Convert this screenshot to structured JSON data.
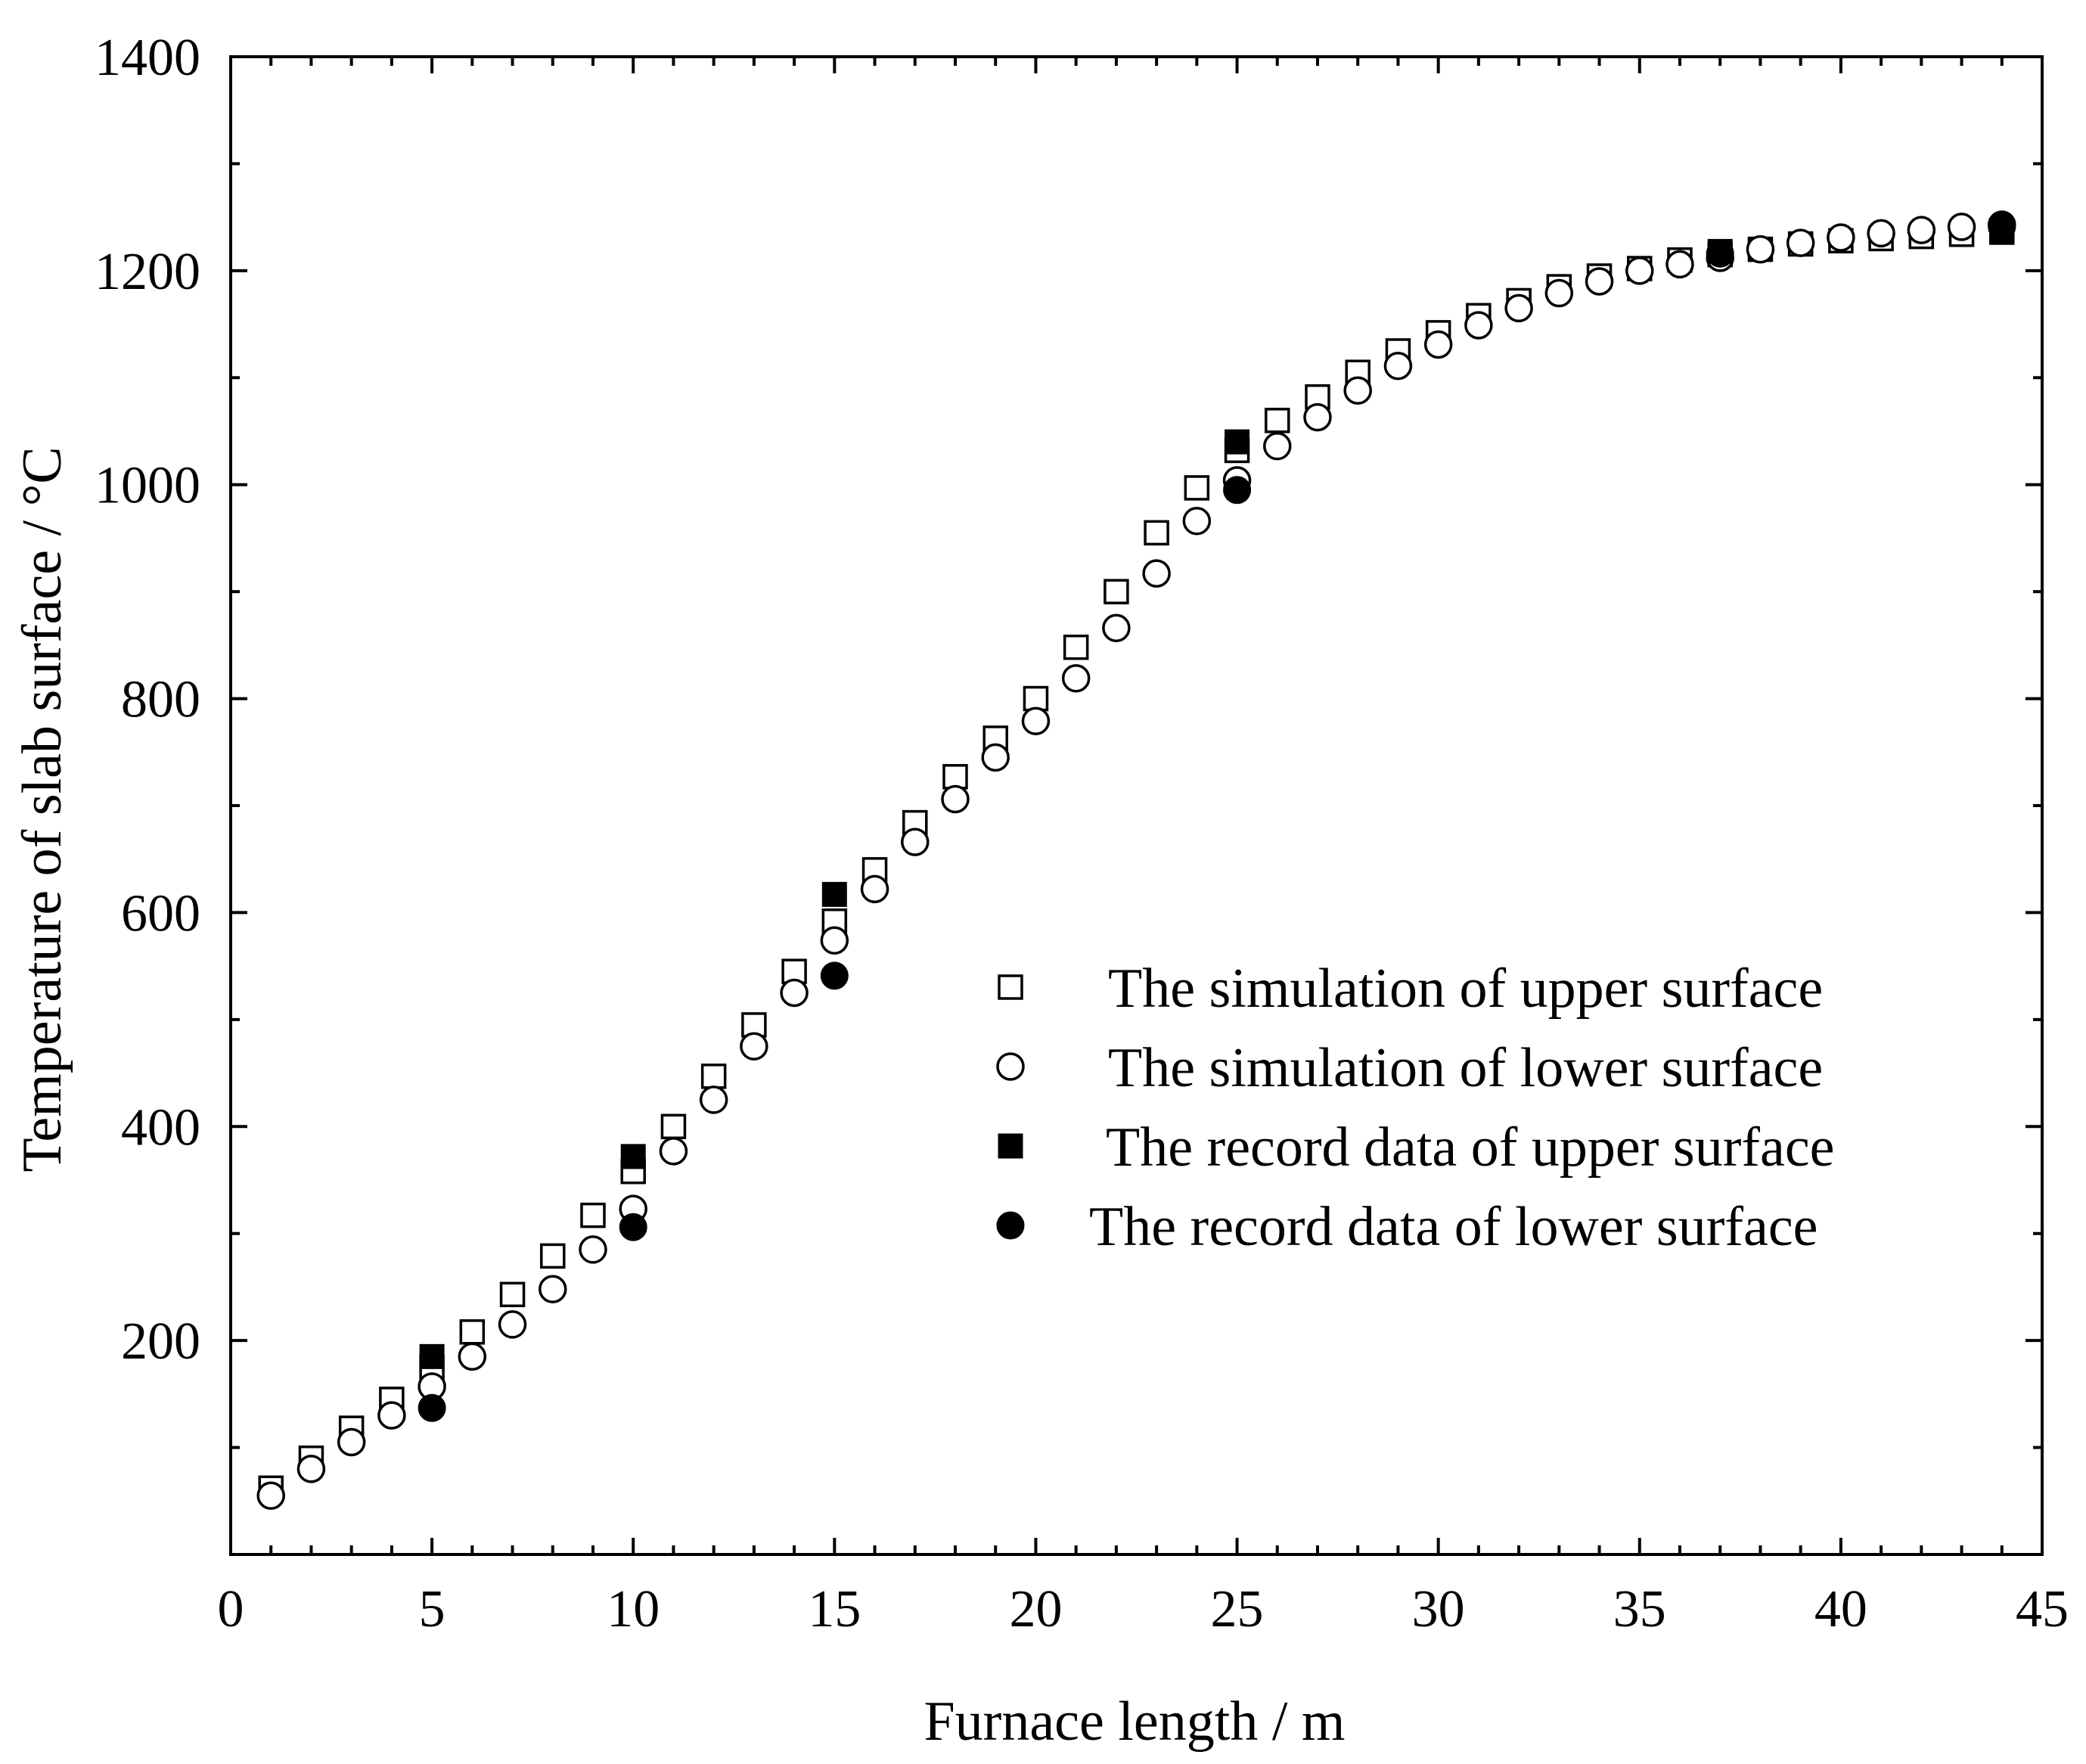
{
  "chart_data": {
    "type": "scatter",
    "title": "",
    "xlabel": "Furnace length / m",
    "ylabel": "Temperature of  slab surface / °C",
    "xlim": [
      0,
      45
    ],
    "ylim": [
      0,
      1400
    ],
    "xticks": [
      0,
      5,
      10,
      15,
      20,
      25,
      30,
      35,
      40,
      45
    ],
    "yticks": [
      200,
      400,
      600,
      800,
      1000,
      1200,
      1400
    ],
    "grid": false,
    "legend_position": "center-right",
    "series": [
      {
        "name": "The simulation of upper surface",
        "marker": "open-square",
        "color": "#000000",
        "x": [
          1,
          2,
          3,
          4,
          5,
          6,
          7,
          8,
          9,
          10,
          11,
          12,
          13,
          14,
          15,
          16,
          17,
          18,
          19,
          20,
          21,
          22,
          23,
          24,
          25,
          26,
          27,
          28,
          29,
          30,
          31,
          32,
          33,
          34,
          35,
          36,
          37,
          38,
          39,
          40,
          41,
          42,
          43,
          44
        ],
        "y": [
          62,
          90,
          118,
          145,
          175,
          208,
          243,
          279,
          317,
          358,
          400,
          447,
          495,
          545,
          592,
          640,
          684,
          727,
          763,
          800,
          848,
          900,
          955,
          997,
          1032,
          1060,
          1082,
          1105,
          1125,
          1142,
          1158,
          1172,
          1185,
          1195,
          1202,
          1210,
          1215,
          1220,
          1225,
          1228,
          1230,
          1232,
          1234,
          1236
        ]
      },
      {
        "name": "The simulation of lower surface",
        "marker": "open-circle",
        "color": "#000000",
        "x": [
          1,
          2,
          3,
          4,
          5,
          6,
          7,
          8,
          9,
          10,
          11,
          12,
          13,
          14,
          15,
          16,
          17,
          18,
          19,
          20,
          21,
          22,
          23,
          24,
          25,
          26,
          27,
          28,
          29,
          30,
          31,
          32,
          33,
          34,
          35,
          36,
          37,
          38,
          39,
          40,
          41,
          42,
          43,
          44
        ],
        "y": [
          55,
          80,
          105,
          130,
          157,
          185,
          215,
          248,
          285,
          323,
          377,
          425,
          475,
          525,
          574,
          622,
          666,
          706,
          745,
          779,
          819,
          866,
          917,
          966,
          1004,
          1036,
          1063,
          1088,
          1111,
          1131,
          1149,
          1165,
          1179,
          1190,
          1200,
          1206,
          1212,
          1220,
          1226,
          1231,
          1235,
          1238,
          1241,
          1243
        ]
      },
      {
        "name": "The record data of upper surface",
        "marker": "filled-square",
        "color": "#000000",
        "x": [
          5,
          10,
          15,
          25,
          37,
          44
        ],
        "y": [
          185,
          372,
          617,
          1040,
          1218,
          1237
        ]
      },
      {
        "name": "The record data of lower surface",
        "marker": "filled-circle",
        "color": "#000000",
        "x": [
          5,
          10,
          15,
          25,
          37,
          44
        ],
        "y": [
          137,
          306,
          541,
          995,
          1216,
          1241
        ]
      }
    ]
  }
}
